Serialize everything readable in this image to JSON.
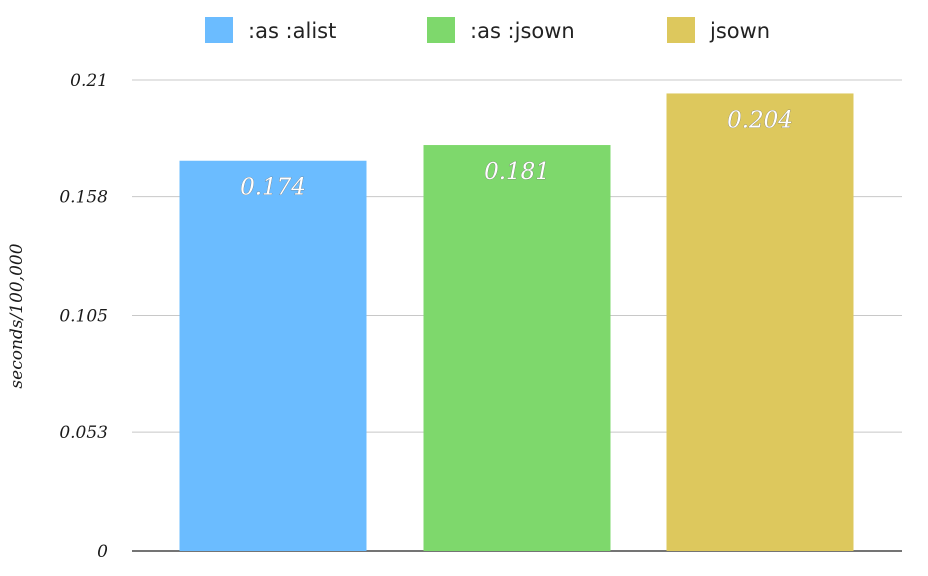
{
  "chart_data": {
    "type": "bar",
    "categories": [
      ":as :alist",
      ":as :jsown",
      "jsown"
    ],
    "values": [
      0.174,
      0.181,
      0.204
    ],
    "data_labels": [
      "0.174",
      "0.181",
      "0.204"
    ],
    "colors": [
      "#6bbcff",
      "#7ed86c",
      "#ddc85d"
    ],
    "legend": {
      "placement": "top",
      "entries": [
        ":as :alist",
        ":as :jsown",
        "jsown"
      ]
    },
    "xlabel": "",
    "ylabel": "seconds/100,000",
    "ylim": [
      0,
      0.21
    ],
    "yticks": [
      0,
      0.053,
      0.105,
      0.158,
      0.21
    ],
    "ytick_labels": [
      "0",
      "0.053",
      "0.105",
      "0.158",
      "0.21"
    ],
    "grid": true
  }
}
